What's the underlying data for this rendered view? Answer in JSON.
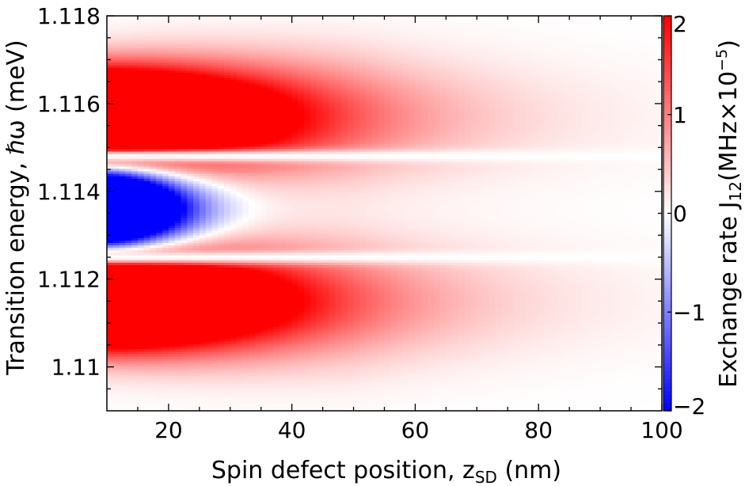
{
  "chart_data": {
    "type": "heatmap",
    "xlabel": "Spin defect position, z",
    "xlabel_sub": "SD",
    "xlabel_unit": " (nm)",
    "ylabel": "Transition energy, ℏω (meV)",
    "colorbar_label": "Exchange rate J",
    "colorbar_label_sub": "12",
    "colorbar_label_unit": "(MHz×10",
    "colorbar_label_exp": "−5",
    "colorbar_label_close": ")",
    "xlim": [
      10,
      100
    ],
    "ylim": [
      1.109,
      1.118
    ],
    "zlim": [
      -2,
      2
    ],
    "x_ticks": [
      20,
      40,
      60,
      80,
      100
    ],
    "x_tick_labels": [
      "20",
      "40",
      "60",
      "80",
      "100"
    ],
    "y_ticks": [
      1.11,
      1.112,
      1.114,
      1.116,
      1.118
    ],
    "y_tick_labels": [
      "1.11",
      "1.112",
      "1.114",
      "1.116",
      "1.118"
    ],
    "colorbar_ticks": [
      -2,
      -1,
      0,
      1,
      2
    ],
    "colorbar_tick_labels": [
      "−2",
      "−1",
      "0",
      "1",
      "2"
    ],
    "colormap": {
      "negative": "#0000ff",
      "zero": "#ffffff",
      "positive": "#ff0000"
    },
    "description_of_field": {
      "red_lobes": [
        {
          "center_energy": 1.1157,
          "peak_value": 2.0,
          "saturated_until_z": 22
        },
        {
          "center_energy": 1.1115,
          "peak_value": 2.0,
          "saturated_until_z": 22
        }
      ],
      "blue_lobe": {
        "center_energy": 1.1136,
        "peak_value": -2.0,
        "saturated_until_z": 18
      },
      "gap_energies": [
        1.1148,
        1.1125
      ]
    }
  }
}
